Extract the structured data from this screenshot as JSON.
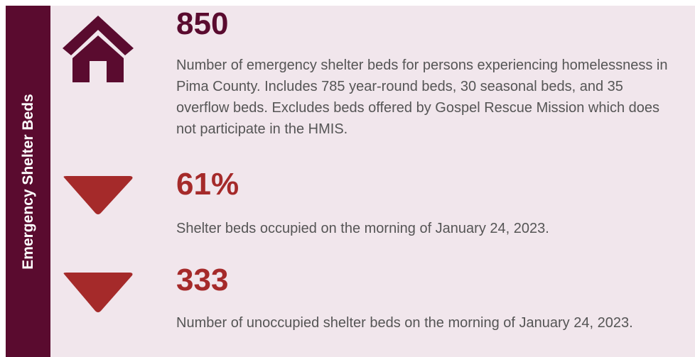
{
  "sidebar_title": "Emergency Shelter Beds",
  "items": [
    {
      "stat": "850",
      "description": "Number of emergency shelter beds for persons experiencing homelessness in Pima County. Includes 785 year-round beds, 30 seasonal beds, and 35 overflow beds. Excludes beds offered by Gospel Rescue Mission which does not participate in the HMIS."
    },
    {
      "stat": "61%",
      "description": "Shelter beds occupied on the morning of January 24, 2023."
    },
    {
      "stat": "333",
      "description": "Number of unoccupied shelter beds on the morning of January 24, 2023."
    }
  ]
}
